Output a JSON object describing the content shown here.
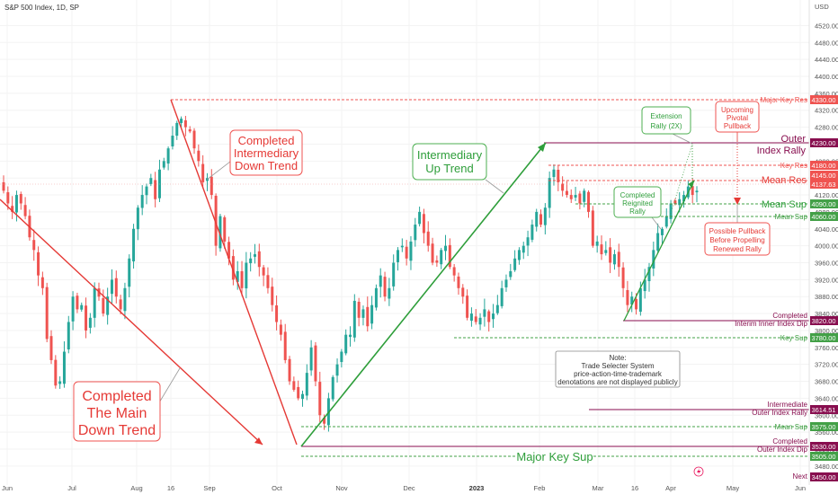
{
  "header": {
    "title": "S&P 500 Index, 1D, SP",
    "currency": "USD",
    "next_label": "Next"
  },
  "colors": {
    "up": "#26a69a",
    "down": "#ef5350",
    "red_line": "#e53935",
    "green_line": "#2e9e3a",
    "maroon": "#880e4f",
    "res_red": "#ef5350",
    "sup_green": "#43a047",
    "annot_green_border": "#4caf50",
    "annot_red_border": "#ef5350"
  },
  "chart_data": {
    "type": "candlestick",
    "title": "S&P 500 Index, 1D, SP",
    "ylabel": "USD",
    "ylim": [
      3450,
      4540
    ],
    "y_ticks": [
      3480,
      3520,
      3560,
      3600,
      3640,
      3680,
      3720,
      3760,
      3800,
      3840,
      3880,
      3920,
      3960,
      4000,
      4040,
      4080,
      4120,
      4160,
      4200,
      4240,
      4280,
      4320,
      4360,
      4400,
      4440,
      4480,
      4520
    ],
    "x_ticks": [
      {
        "label": "Jun",
        "bold": false
      },
      {
        "label": "Jul",
        "bold": false
      },
      {
        "label": "Aug",
        "bold": false
      },
      {
        "label": "16",
        "bold": false
      },
      {
        "label": "Sep",
        "bold": false
      },
      {
        "label": "Oct",
        "bold": false
      },
      {
        "label": "Nov",
        "bold": false
      },
      {
        "label": "Dec",
        "bold": false
      },
      {
        "label": "2023",
        "bold": true
      },
      {
        "label": "Feb",
        "bold": false
      },
      {
        "label": "Mar",
        "bold": false
      },
      {
        "label": "16",
        "bold": false
      },
      {
        "label": "Apr",
        "bold": false
      },
      {
        "label": "May",
        "bold": false
      },
      {
        "label": "Jun",
        "bold": false
      }
    ],
    "closes": [
      4130,
      4100,
      4080,
      4120,
      4100,
      4070,
      4020,
      3990,
      3930,
      3900,
      3780,
      3730,
      3670,
      3680,
      3750,
      3820,
      3880,
      3850,
      3860,
      3800,
      3830,
      3900,
      3880,
      3840,
      3880,
      3920,
      3880,
      3850,
      3900,
      3970,
      4040,
      4090,
      4120,
      4140,
      4160,
      4110,
      4180,
      4200,
      4230,
      4260,
      4290,
      4300,
      4280,
      4270,
      4230,
      4200,
      4150,
      4160,
      4120,
      4000,
      4070,
      4010,
      3970,
      3920,
      3940,
      3900,
      3960,
      3970,
      3980,
      3950,
      3930,
      3900,
      3860,
      3820,
      3790,
      3730,
      3680,
      3660,
      3640,
      3650,
      3700,
      3760,
      3680,
      3600,
      3580,
      3640,
      3690,
      3720,
      3750,
      3790,
      3790,
      3870,
      3830,
      3850,
      3810,
      3860,
      3900,
      3930,
      3880,
      3900,
      3960,
      3990,
      4000,
      3970,
      4010,
      4050,
      4080,
      4030,
      4000,
      3960,
      3960,
      3990,
      4000,
      3950,
      3930,
      3900,
      3880,
      3830,
      3840,
      3820,
      3830,
      3850,
      3820,
      3840,
      3860,
      3900,
      3920,
      3940,
      3970,
      3990,
      4000,
      4020,
      4050,
      4080,
      4050,
      4090,
      4160,
      4180,
      4150,
      4130,
      4120,
      4110,
      4120,
      4100,
      4130,
      4080,
      4000,
      4010,
      3980,
      3990,
      3960,
      3980,
      3950,
      3900,
      3860,
      3880,
      3850,
      3900,
      3920,
      3950,
      3990,
      4030,
      4040,
      4070,
      4100,
      4100,
      4110,
      4120,
      4140,
      4120,
      4130
    ]
  },
  "levels": {
    "major_key_res": {
      "label": "Major Key Res",
      "value": "4330.00"
    },
    "outer_index_rally": {
      "label1": "Outer",
      "label2": "Index Rally",
      "value": "4230.00"
    },
    "key_res": {
      "label": "Key Res",
      "value": "4180.00"
    },
    "current": {
      "value1": "4145.00",
      "value2": "4137.63"
    },
    "mean_res": {
      "label": "Mean Res",
      "value": "4137.63"
    },
    "mean_sup": {
      "label": "Mean Sup",
      "value": "4090.00"
    },
    "mean_sup_2": {
      "label": "Mean Sup",
      "value": "4060.00"
    },
    "completed_inner": {
      "label1": "Completed",
      "label2": "Interim Inner Index Dip",
      "value": "3820.00"
    },
    "key_sup": {
      "label": "Key Sup",
      "value": "3780.00"
    },
    "intermediate_outer": {
      "label1": "Intermediate",
      "label2": "Outer Index Rally",
      "value": "3614.51"
    },
    "mean_sup_low": {
      "label": "Mean Sup",
      "value": "3575.00"
    },
    "completed_outer": {
      "label1": "Completed",
      "label2": "Outer Index Dip",
      "value1": "3530.00",
      "value2": "3505.00"
    },
    "major_key_sup": {
      "label": "Major Key Sup"
    },
    "next": {
      "value": "3450.00"
    }
  },
  "annotations": {
    "main_down": {
      "line1": "Completed",
      "line2": "The Main",
      "line3": "Down Trend"
    },
    "inter_down": {
      "line1": "Completed",
      "line2": "Intermediary",
      "line3": "Down Trend"
    },
    "inter_up": {
      "line1": "Intermediary",
      "line2": "Up Trend"
    },
    "extension": {
      "line1": "Extension",
      "line2": "Rally (2X)"
    },
    "reignited": {
      "line1": "Completed",
      "line2": "Reignited",
      "line3": "Rally"
    },
    "upcoming": {
      "line1": "Upcoming",
      "line2": "Pivotal",
      "line3": "Pullback"
    },
    "possible": {
      "line1": "Possible Pullback",
      "line2": "Before Propelling",
      "line3": "Renewed Rally"
    },
    "note": {
      "line1": "Note:",
      "line2": "Trade Selecter System",
      "line3": "price-action-time-trademark",
      "line4": "denotations are not displayed publicly"
    }
  }
}
